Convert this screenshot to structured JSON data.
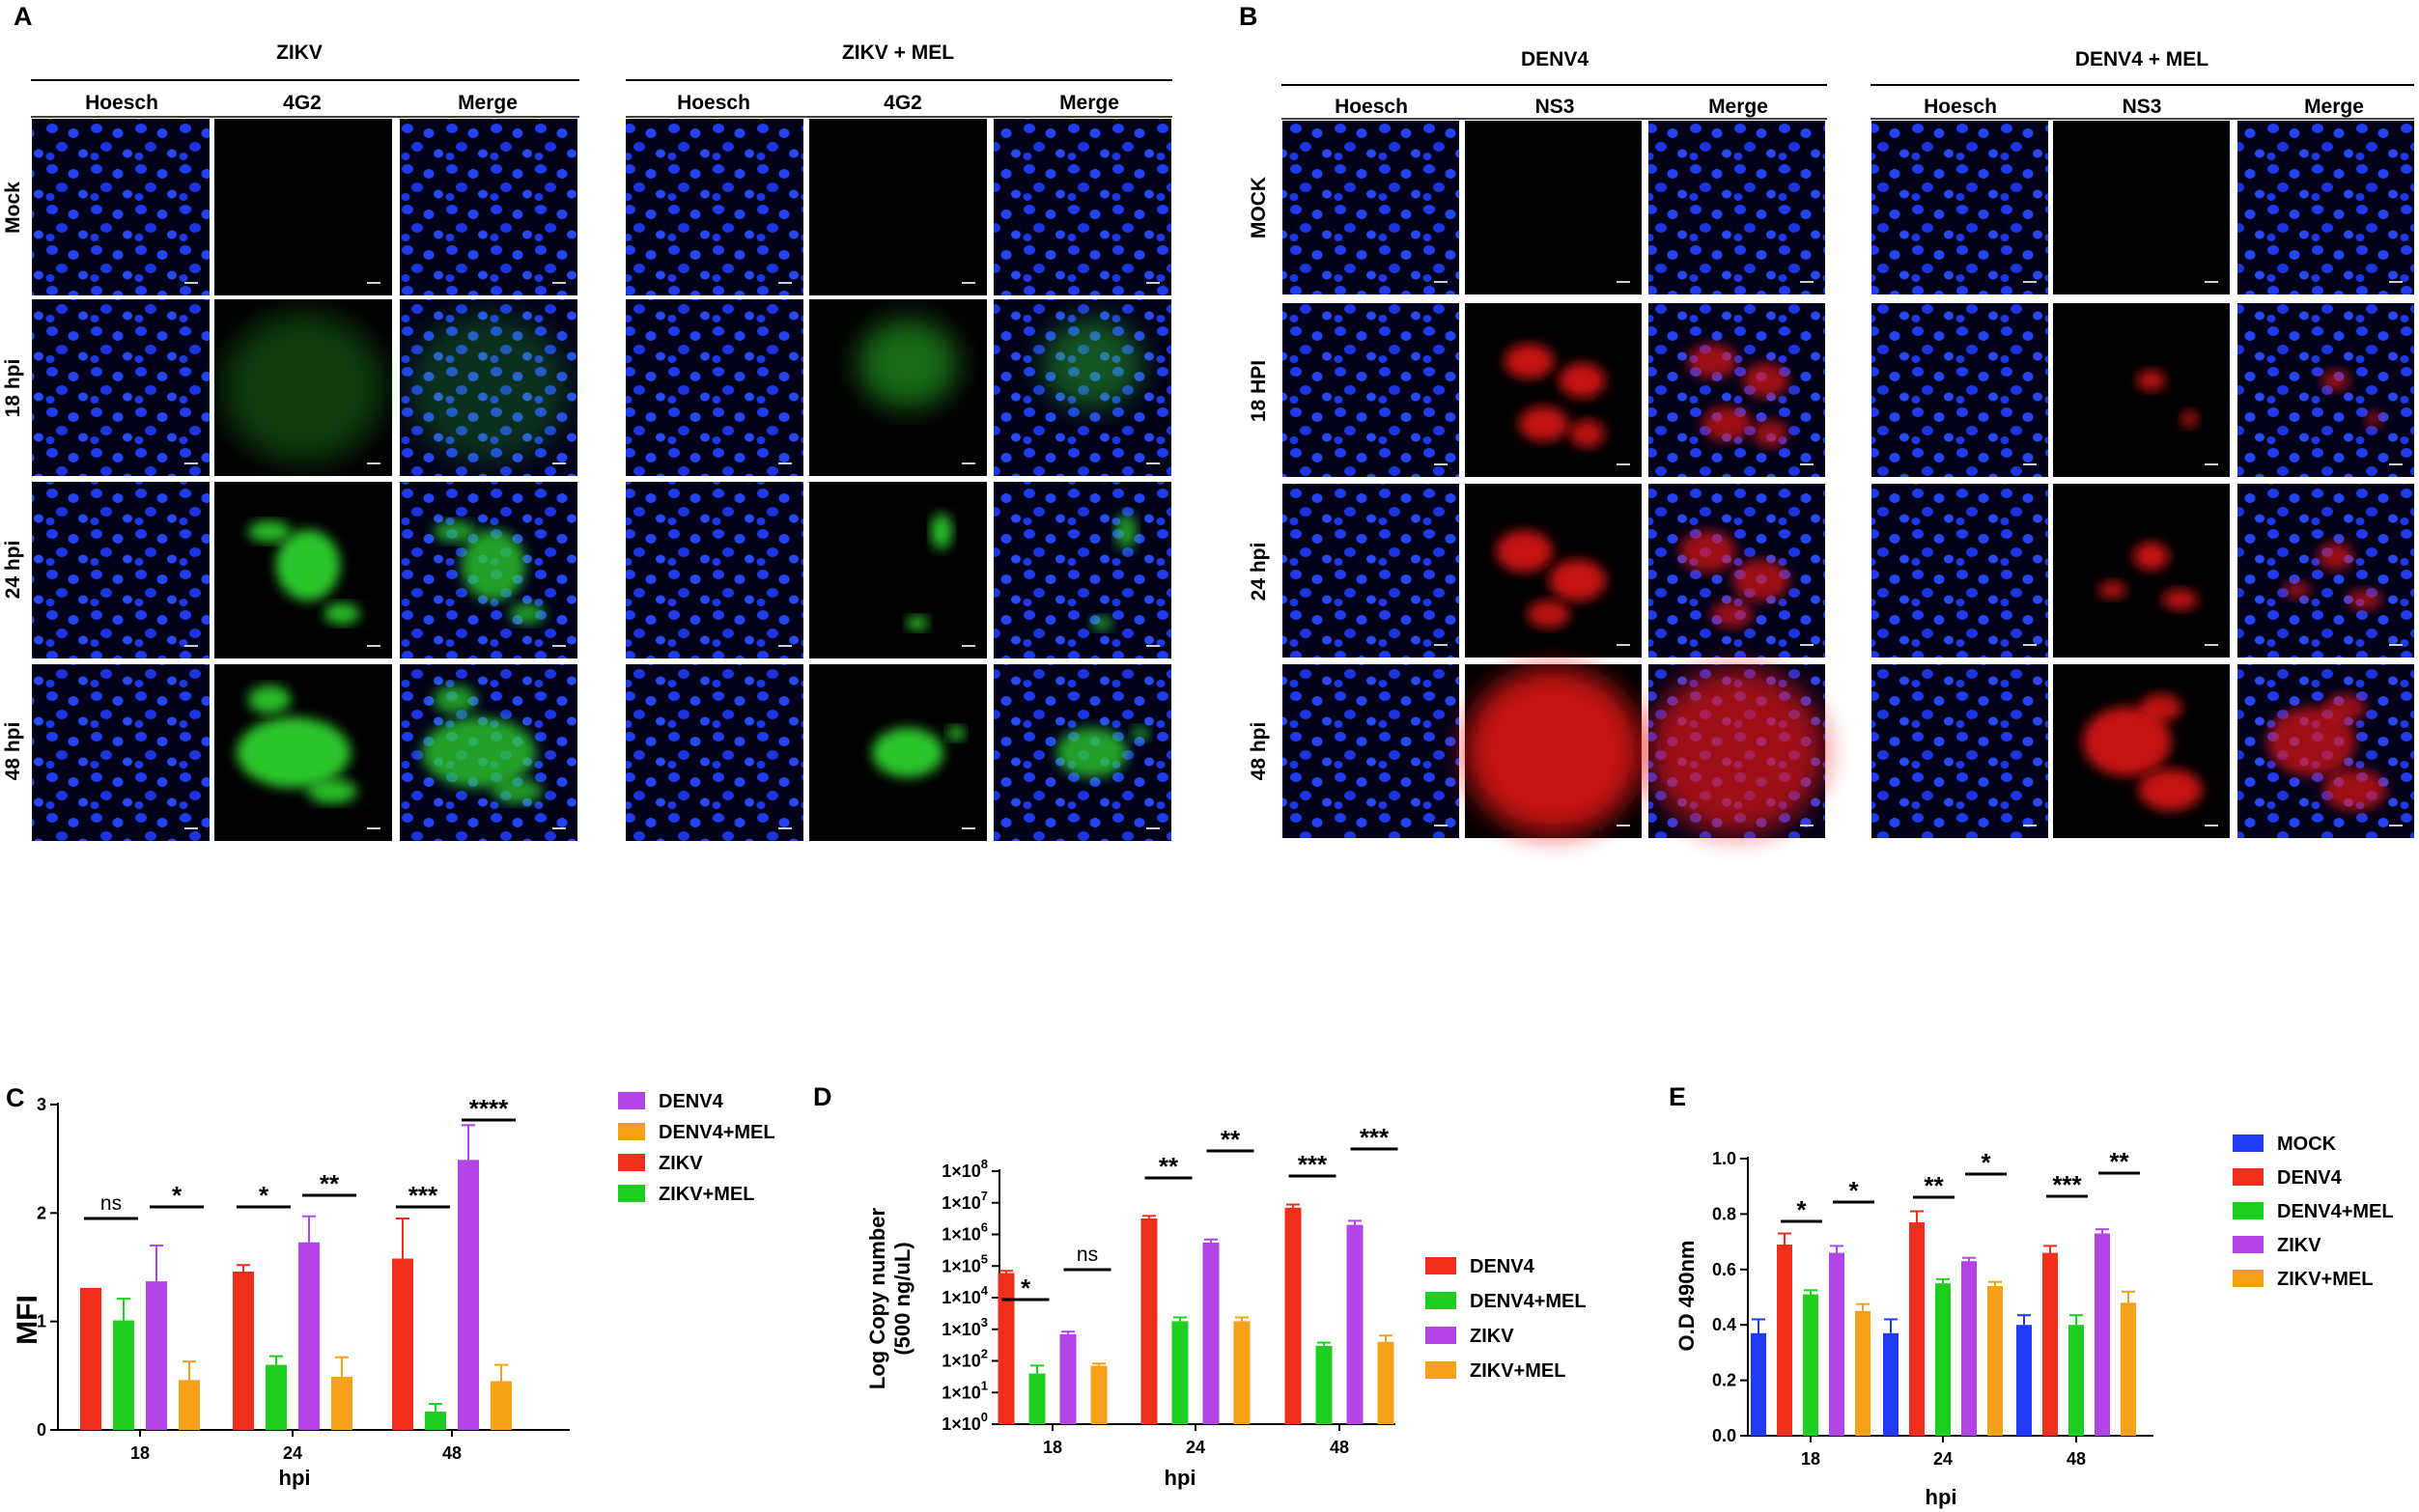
{
  "panelA": {
    "letter": "A",
    "conditions": [
      "ZIKV",
      "ZIKV + MEL"
    ],
    "columns": [
      "Hoesch",
      "4G2",
      "Merge"
    ],
    "rows": [
      "Mock",
      "18 hpi",
      "24 hpi",
      "48 hpi"
    ],
    "signal_color": "#2fd02f"
  },
  "panelB": {
    "letter": "B",
    "conditions": [
      "DENV4",
      "DENV4 + MEL"
    ],
    "columns": [
      "Hoesch",
      "NS3",
      "Merge"
    ],
    "rows": [
      "MOCK",
      "18 HPI",
      "24 hpi",
      "48 hpi"
    ],
    "signal_color": "#e81818"
  },
  "chart_data": [
    {
      "letter": "C",
      "type": "bar",
      "categories": [
        "18",
        "24",
        "48"
      ],
      "xlabel": "hpi",
      "ylabel": "MFI",
      "ylim": [
        0,
        3
      ],
      "yticks": [
        "0",
        "1",
        "2",
        "3"
      ],
      "series": [
        {
          "name": "ZIKV",
          "color": "#ef2e1c",
          "values": [
            1.31,
            1.46,
            1.58
          ],
          "errors": [
            0,
            0.06,
            0.37
          ]
        },
        {
          "name": "ZIKV+MEL",
          "color": "#1fcf1f",
          "values": [
            1.01,
            0.6,
            0.17
          ],
          "errors": [
            0.2,
            0.08,
            0.07
          ]
        },
        {
          "name": "DENV4",
          "color": "#b244e6",
          "values": [
            1.37,
            1.73,
            2.49
          ],
          "errors": [
            0.33,
            0.24,
            0.32
          ]
        },
        {
          "name": "DENV4+MEL",
          "color": "#f7a11b",
          "values": [
            0.46,
            0.49,
            0.45
          ],
          "errors": [
            0.17,
            0.18,
            0.15
          ]
        }
      ],
      "legend": [
        "DENV4",
        "DENV4+MEL",
        "ZIKV",
        "ZIKV+MEL"
      ],
      "legend_position": "right",
      "significance": [
        {
          "label": "ns",
          "category": 0,
          "pair": [
            0,
            1
          ]
        },
        {
          "label": "*",
          "category": 0,
          "pair": [
            2,
            3
          ]
        },
        {
          "label": "*",
          "category": 1,
          "pair": [
            0,
            1
          ]
        },
        {
          "label": "**",
          "category": 1,
          "pair": [
            2,
            3
          ]
        },
        {
          "label": "***",
          "category": 2,
          "pair": [
            0,
            1
          ]
        },
        {
          "label": "****",
          "category": 2,
          "pair": [
            2,
            3
          ]
        }
      ]
    },
    {
      "letter": "D",
      "type": "bar",
      "categories": [
        "18",
        "24",
        "48"
      ],
      "xlabel": "hpi",
      "ylabel": "Log Copy number",
      "ylabel2": "(500 ng/uL)",
      "yscale": "log",
      "ylim": [
        1,
        100000000
      ],
      "yticks": [
        {
          "base": "1×10",
          "exp": "0"
        },
        {
          "base": "1×10",
          "exp": "1"
        },
        {
          "base": "1×10",
          "exp": "2"
        },
        {
          "base": "1×10",
          "exp": "3"
        },
        {
          "base": "1×10",
          "exp": "4"
        },
        {
          "base": "1×10",
          "exp": "5"
        },
        {
          "base": "1×10",
          "exp": "6"
        },
        {
          "base": "1×10",
          "exp": "7"
        },
        {
          "base": "1×10",
          "exp": "8"
        }
      ],
      "series": [
        {
          "name": "DENV4",
          "color": "#ef2e1c",
          "values": [
            60000,
            3200000,
            7000000
          ],
          "errors": [
            0.07,
            0.08,
            0.1
          ]
        },
        {
          "name": "DENV4+MEL",
          "color": "#1fcf1f",
          "values": [
            40,
            1800,
            300
          ],
          "errors": [
            0.25,
            0.12,
            0.1
          ]
        },
        {
          "name": "ZIKV",
          "color": "#b244e6",
          "values": [
            700,
            550000,
            2000000
          ],
          "errors": [
            0.08,
            0.1,
            0.13
          ]
        },
        {
          "name": "ZIKV+MEL",
          "color": "#f7a11b",
          "values": [
            70,
            1800,
            400
          ],
          "errors": [
            0.07,
            0.12,
            0.2
          ]
        }
      ],
      "legend": [
        "DENV4",
        "DENV4+MEL",
        "ZIKV",
        "ZIKV+MEL"
      ],
      "legend_position": "right",
      "significance": [
        {
          "label": "*",
          "category": 0,
          "pair": [
            0,
            1
          ]
        },
        {
          "label": "ns",
          "category": 0,
          "pair": [
            2,
            3
          ]
        },
        {
          "label": "**",
          "category": 1,
          "pair": [
            0,
            1
          ]
        },
        {
          "label": "**",
          "category": 1,
          "pair": [
            2,
            3
          ]
        },
        {
          "label": "***",
          "category": 2,
          "pair": [
            0,
            1
          ]
        },
        {
          "label": "***",
          "category": 2,
          "pair": [
            2,
            3
          ]
        }
      ]
    },
    {
      "letter": "E",
      "type": "bar",
      "categories": [
        "18",
        "24",
        "48"
      ],
      "xlabel": "hpi",
      "ylabel": "O.D 490nm",
      "ylim": [
        0,
        1
      ],
      "yticks": [
        "0.0",
        "0.2",
        "0.4",
        "0.6",
        "0.8",
        "1.0"
      ],
      "series": [
        {
          "name": "MOCK",
          "color": "#1f3cf2",
          "values": [
            0.37,
            0.37,
            0.4
          ],
          "errors": [
            0.05,
            0.05,
            0.035
          ]
        },
        {
          "name": "DENV4",
          "color": "#ef2e1c",
          "values": [
            0.69,
            0.77,
            0.66
          ],
          "errors": [
            0.04,
            0.04,
            0.025
          ]
        },
        {
          "name": "DENV4+MEL",
          "color": "#1fcf1f",
          "values": [
            0.51,
            0.55,
            0.4
          ],
          "errors": [
            0.015,
            0.015,
            0.035
          ]
        },
        {
          "name": "ZIKV",
          "color": "#b244e6",
          "values": [
            0.66,
            0.63,
            0.73
          ],
          "errors": [
            0.025,
            0.012,
            0.015
          ]
        },
        {
          "name": "ZIKV+MEL",
          "color": "#f7a11b",
          "values": [
            0.45,
            0.54,
            0.48
          ],
          "errors": [
            0.025,
            0.015,
            0.04
          ]
        }
      ],
      "legend": [
        "MOCK",
        "DENV4",
        "DENV4+MEL",
        "ZIKV",
        "ZIKV+MEL"
      ],
      "legend_position": "right",
      "significance": [
        {
          "label": "*",
          "category": 0,
          "pair": [
            1,
            2
          ]
        },
        {
          "label": "*",
          "category": 0,
          "pair": [
            3,
            4
          ]
        },
        {
          "label": "**",
          "category": 1,
          "pair": [
            1,
            2
          ]
        },
        {
          "label": "*",
          "category": 1,
          "pair": [
            3,
            4
          ]
        },
        {
          "label": "***",
          "category": 2,
          "pair": [
            1,
            2
          ]
        },
        {
          "label": "**",
          "category": 2,
          "pair": [
            3,
            4
          ]
        }
      ]
    }
  ]
}
